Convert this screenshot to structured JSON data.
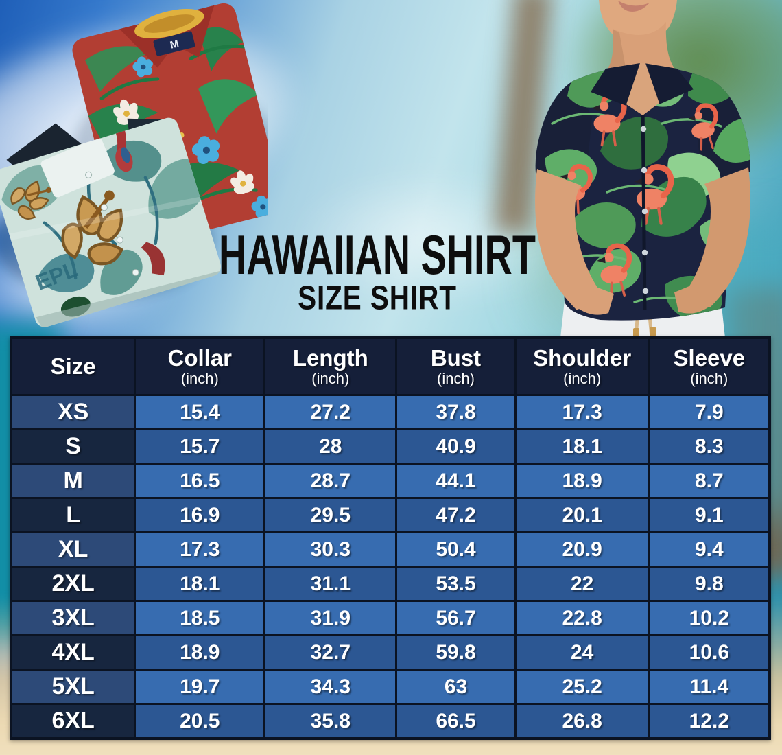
{
  "hero": {
    "title": "HAWAIIAN SHIRT",
    "subtitle": "SIZE SHIRT",
    "left_photo_alt": "Two folded Hawaiian shirts - red with green tropical palm print and light teal with gold hibiscus and parrot print",
    "right_photo_alt": "Man wearing a navy Hawaiian shirt with green tropical leaves and pink flamingos, white pants",
    "shirt_tag_label": "M",
    "teal_print_text": "EPL"
  },
  "size_chart": {
    "columns": [
      {
        "label": "Size",
        "sub": ""
      },
      {
        "label": "Collar",
        "sub": "(inch)"
      },
      {
        "label": "Length",
        "sub": "(inch)"
      },
      {
        "label": "Bust",
        "sub": "(inch)"
      },
      {
        "label": "Shoulder",
        "sub": "(inch)"
      },
      {
        "label": "Sleeve",
        "sub": "(inch)"
      }
    ],
    "rows": [
      {
        "size": "XS",
        "values": [
          "15.4",
          "27.2",
          "37.8",
          "17.3",
          "7.9"
        ]
      },
      {
        "size": "S",
        "values": [
          "15.7",
          "28",
          "40.9",
          "18.1",
          "8.3"
        ]
      },
      {
        "size": "M",
        "values": [
          "16.5",
          "28.7",
          "44.1",
          "18.9",
          "8.7"
        ]
      },
      {
        "size": "L",
        "values": [
          "16.9",
          "29.5",
          "47.2",
          "20.1",
          "9.1"
        ]
      },
      {
        "size": "XL",
        "values": [
          "17.3",
          "30.3",
          "50.4",
          "20.9",
          "9.4"
        ]
      },
      {
        "size": "2XL",
        "values": [
          "18.1",
          "31.1",
          "53.5",
          "22",
          "9.8"
        ]
      },
      {
        "size": "3XL",
        "values": [
          "18.5",
          "31.9",
          "56.7",
          "22.8",
          "10.2"
        ]
      },
      {
        "size": "4XL",
        "values": [
          "18.9",
          "32.7",
          "59.8",
          "24",
          "10.6"
        ]
      },
      {
        "size": "5XL",
        "values": [
          "19.7",
          "34.3",
          "63",
          "25.2",
          "11.4"
        ]
      },
      {
        "size": "6XL",
        "values": [
          "20.5",
          "35.8",
          "66.5",
          "26.8",
          "12.2"
        ]
      }
    ]
  },
  "chart_data": {
    "type": "table",
    "title": "HAWAIIAN SHIRT - SIZE SHIRT",
    "columns": [
      "Size",
      "Collar (inch)",
      "Length (inch)",
      "Bust (inch)",
      "Shoulder (inch)",
      "Sleeve (inch)"
    ],
    "rows": [
      [
        "XS",
        15.4,
        27.2,
        37.8,
        17.3,
        7.9
      ],
      [
        "S",
        15.7,
        28,
        40.9,
        18.1,
        8.3
      ],
      [
        "M",
        16.5,
        28.7,
        44.1,
        18.9,
        8.7
      ],
      [
        "L",
        16.9,
        29.5,
        47.2,
        20.1,
        9.1
      ],
      [
        "XL",
        17.3,
        30.3,
        50.4,
        20.9,
        9.4
      ],
      [
        "2XL",
        18.1,
        31.1,
        53.5,
        22,
        9.8
      ],
      [
        "3XL",
        18.5,
        31.9,
        56.7,
        22.8,
        10.2
      ],
      [
        "4XL",
        18.9,
        32.7,
        59.8,
        24,
        10.6
      ],
      [
        "5XL",
        19.7,
        34.3,
        63,
        25.2,
        11.4
      ],
      [
        "6XL",
        20.5,
        35.8,
        66.5,
        26.8,
        12.2
      ]
    ]
  },
  "colors": {
    "header_bg": "#151f39",
    "size_cell_light": "#2d4a78",
    "size_cell_dark": "#17263f",
    "value_cell_light": "#376cb0",
    "value_cell_dark": "#2c5793",
    "table_border": "#0b1322",
    "cell_text": "#ffffff",
    "title_text": "#0d0d0d",
    "sky_blue": "#3579cc",
    "ocean_teal": "#128ea6",
    "sand": "#ecd9b2"
  }
}
